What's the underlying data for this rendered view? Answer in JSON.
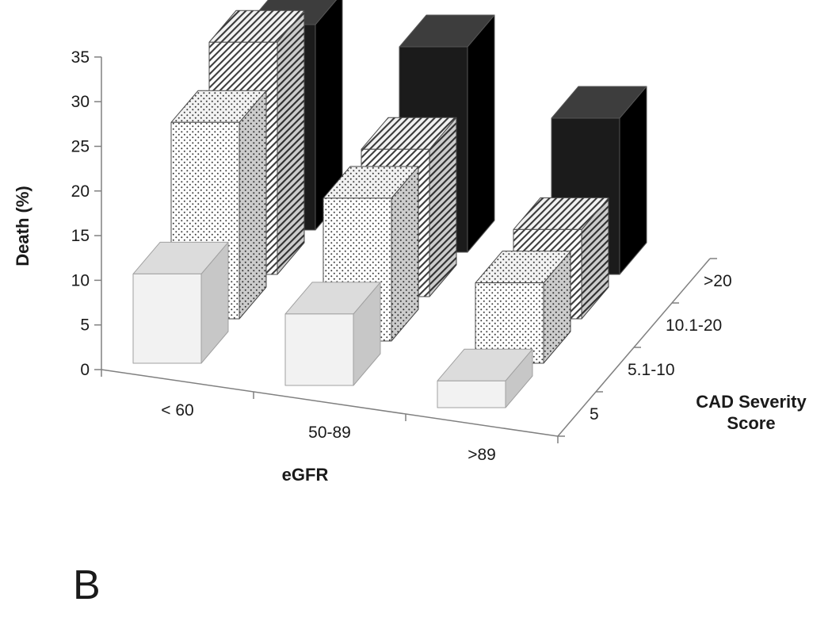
{
  "figure_label": "B",
  "chart_data": {
    "type": "bar",
    "projection": "3d",
    "title": "",
    "xlabel": "eGFR",
    "ylabel": "Death (%)",
    "zlabel": "CAD Severity Score",
    "zlabel_lines": [
      "CAD Severity",
      "Score"
    ],
    "categories": [
      "< 60",
      "50-89",
      ">89"
    ],
    "series": [
      {
        "name": "5",
        "style": "light",
        "values": [
          10,
          8,
          3
        ]
      },
      {
        "name": "5.1-10",
        "style": "dots",
        "values": [
          22,
          16,
          9
        ]
      },
      {
        "name": "10.1-20",
        "style": "stripes",
        "values": [
          26,
          16.5,
          10
        ]
      },
      {
        "name": ">20",
        "style": "black",
        "values": [
          23,
          23,
          17.5
        ]
      }
    ],
    "yticks": [
      0,
      5,
      10,
      15,
      20,
      25,
      30,
      35
    ],
    "ylim": [
      0,
      35
    ],
    "legend": "none",
    "grid": false,
    "colors": {
      "light_bar": "#f2f2f2",
      "dark_bar": "#1b1b1b",
      "axis": "#808080",
      "text": "#1a1a1a"
    }
  }
}
